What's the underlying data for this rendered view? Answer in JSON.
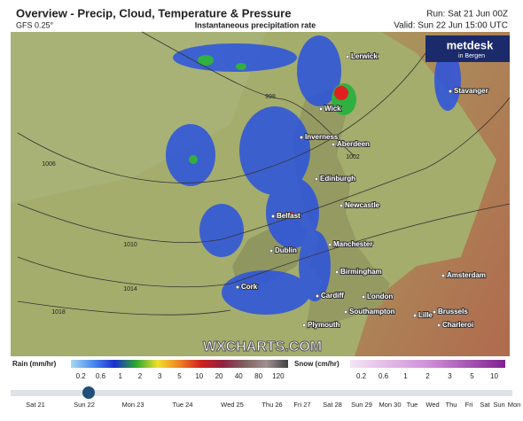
{
  "header": {
    "title": "Overview - Precip, Cloud, Temperature & Pressure",
    "model": "GFS 0.25°",
    "subtitle": "Instantaneous precipitation rate",
    "run": "Run: Sat 21 Jun 00Z",
    "valid": "Valid: Sun 22 Jun 15:00 UTC"
  },
  "logo": {
    "name": "metdesk",
    "sub": "in Bergen"
  },
  "map": {
    "cities": [
      "Lerwick",
      "Stavanger",
      "Wick",
      "Inverness",
      "Aberdeen",
      "Edinburgh",
      "Belfast",
      "Newcastle",
      "Manchester",
      "Dublin",
      "Birmingham",
      "Cork",
      "Cardiff",
      "London",
      "Southampton",
      "Plymouth",
      "Amsterdam",
      "Lille",
      "Brussels",
      "Charleroi"
    ],
    "isobars": [
      "998",
      "1002",
      "1006",
      "1010",
      "1014",
      "1018"
    ],
    "watermark": "WXCHARTS.COM"
  },
  "legend": {
    "rain": {
      "label": "Rain (mm/hr)",
      "ticks": [
        "0.2",
        "0.6",
        "1",
        "2",
        "3",
        "5",
        "10",
        "20",
        "40",
        "80",
        "120"
      ]
    },
    "snow": {
      "label": "Snow (cm/hr)",
      "ticks": [
        "0.2",
        "0.6",
        "1",
        "2",
        "3",
        "5",
        "10"
      ]
    }
  },
  "timeline": [
    "Sat 21",
    "Sun 22",
    "Mon 23",
    "Tue 24",
    "Wed 25",
    "Thu 26",
    "Fri 27",
    "Sat 28",
    "Sun 29",
    "Mon 30",
    "Tue",
    "Wed",
    "Thu",
    "Fri",
    "Sat",
    "Sun",
    "Mon"
  ]
}
